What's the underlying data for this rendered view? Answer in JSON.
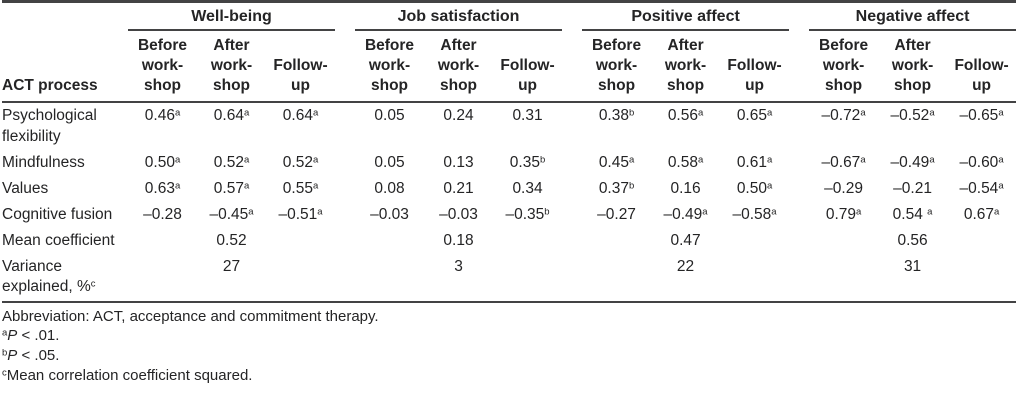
{
  "table": {
    "corner_label": "ACT process",
    "groups": [
      "Well-being",
      "Job satisfaction",
      "Positive affect",
      "Negative affect"
    ],
    "col_headers": [
      "Before\nwork-\nshop",
      "After\nwork-\nshop",
      "Follow-\nup"
    ],
    "rows": [
      {
        "label": "Psychological\nflexibility",
        "cells": [
          {
            "v": "0.46",
            "s": "a"
          },
          {
            "v": "0.64",
            "s": "a"
          },
          {
            "v": "0.64",
            "s": "a"
          },
          {
            "v": "0.05",
            "s": ""
          },
          {
            "v": "0.24",
            "s": ""
          },
          {
            "v": "0.31",
            "s": ""
          },
          {
            "v": "0.38",
            "s": "b"
          },
          {
            "v": "0.56",
            "s": "a"
          },
          {
            "v": "0.65",
            "s": "a"
          },
          {
            "v": "–0.72",
            "s": "a"
          },
          {
            "v": "–0.52",
            "s": "a"
          },
          {
            "v": "–0.65",
            "s": "a"
          }
        ]
      },
      {
        "label": "Mindfulness",
        "cells": [
          {
            "v": "0.50",
            "s": "a"
          },
          {
            "v": "0.52",
            "s": "a"
          },
          {
            "v": "0.52",
            "s": "a"
          },
          {
            "v": "0.05",
            "s": ""
          },
          {
            "v": "0.13",
            "s": ""
          },
          {
            "v": "0.35",
            "s": "b"
          },
          {
            "v": "0.45",
            "s": "a"
          },
          {
            "v": "0.58",
            "s": "a"
          },
          {
            "v": "0.61",
            "s": "a"
          },
          {
            "v": "–0.67",
            "s": "a"
          },
          {
            "v": "–0.49",
            "s": "a"
          },
          {
            "v": "–0.60",
            "s": "a"
          }
        ]
      },
      {
        "label": "Values",
        "cells": [
          {
            "v": "0.63",
            "s": "a"
          },
          {
            "v": "0.57",
            "s": "a"
          },
          {
            "v": "0.55",
            "s": "a"
          },
          {
            "v": "0.08",
            "s": ""
          },
          {
            "v": "0.21",
            "s": ""
          },
          {
            "v": "0.34",
            "s": ""
          },
          {
            "v": "0.37",
            "s": "b"
          },
          {
            "v": "0.16",
            "s": ""
          },
          {
            "v": "0.50",
            "s": "a"
          },
          {
            "v": "–0.29",
            "s": ""
          },
          {
            "v": "–0.21",
            "s": ""
          },
          {
            "v": "–0.54",
            "s": "a"
          }
        ]
      },
      {
        "label": "Cognitive fusion",
        "cells": [
          {
            "v": "–0.28",
            "s": ""
          },
          {
            "v": "–0.45",
            "s": "a"
          },
          {
            "v": "–0.51",
            "s": "a"
          },
          {
            "v": "–0.03",
            "s": ""
          },
          {
            "v": "–0.03",
            "s": ""
          },
          {
            "v": "–0.35",
            "s": "b"
          },
          {
            "v": "–0.27",
            "s": ""
          },
          {
            "v": "–0.49",
            "s": "a"
          },
          {
            "v": "–0.58",
            "s": "a"
          },
          {
            "v": "0.79",
            "s": "a"
          },
          {
            "v": "0.54 ",
            "s": "a"
          },
          {
            "v": "0.67",
            "s": "a"
          }
        ]
      },
      {
        "label": "Mean coefficient",
        "cells": [
          {
            "v": "",
            "s": ""
          },
          {
            "v": "0.52",
            "s": ""
          },
          {
            "v": "",
            "s": ""
          },
          {
            "v": "",
            "s": ""
          },
          {
            "v": "0.18",
            "s": ""
          },
          {
            "v": "",
            "s": ""
          },
          {
            "v": "",
            "s": ""
          },
          {
            "v": "0.47",
            "s": ""
          },
          {
            "v": "",
            "s": ""
          },
          {
            "v": "",
            "s": ""
          },
          {
            "v": "0.56",
            "s": ""
          },
          {
            "v": "",
            "s": ""
          }
        ]
      },
      {
        "label": "Variance\nexplained, %",
        "label_sup": "c",
        "cells": [
          {
            "v": "",
            "s": ""
          },
          {
            "v": "27",
            "s": ""
          },
          {
            "v": "",
            "s": ""
          },
          {
            "v": "",
            "s": ""
          },
          {
            "v": "3",
            "s": ""
          },
          {
            "v": "",
            "s": ""
          },
          {
            "v": "",
            "s": ""
          },
          {
            "v": "22",
            "s": ""
          },
          {
            "v": "",
            "s": ""
          },
          {
            "v": "",
            "s": ""
          },
          {
            "v": "31",
            "s": ""
          },
          {
            "v": "",
            "s": ""
          }
        ]
      }
    ]
  },
  "footnotes": [
    {
      "sup": "",
      "italic": "",
      "text": "Abbreviation: ACT, acceptance and commitment therapy."
    },
    {
      "sup": "a",
      "italic": "P",
      "text": " < .01."
    },
    {
      "sup": "b",
      "italic": "P",
      "text": " < .05."
    },
    {
      "sup": "c",
      "italic": "",
      "text": "Mean correlation coefficient squared."
    }
  ],
  "colors": {
    "rule": "#434344",
    "text": "#242425"
  }
}
